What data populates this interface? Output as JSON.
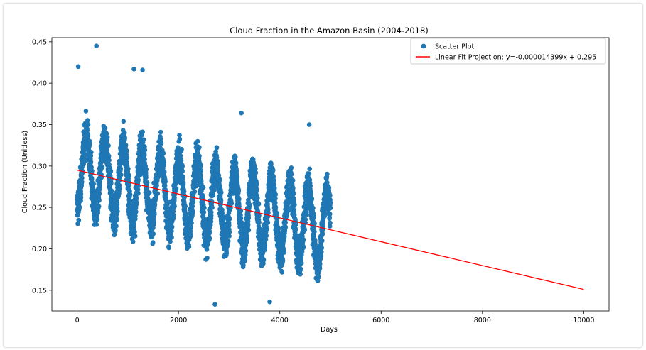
{
  "chart_data": {
    "type": "scatter",
    "title": "Cloud Fraction in the Amazon Basin (2004-2018)",
    "xlabel": "Days",
    "ylabel": "Cloud Fraction (Unitless)",
    "xlim": [
      -500,
      10500
    ],
    "ylim": [
      0.125,
      0.455
    ],
    "xticks": [
      0,
      2000,
      4000,
      6000,
      8000,
      10000
    ],
    "yticks": [
      0.15,
      0.2,
      0.25,
      0.3,
      0.35,
      0.4,
      0.45
    ],
    "ytick_labels": [
      "0.15",
      "0.20",
      "0.25",
      "0.30",
      "0.35",
      "0.40",
      "0.45"
    ],
    "legend_position": "top-right",
    "series": [
      {
        "name": "Scatter Plot",
        "kind": "scatter",
        "color": "#1f77b4",
        "x_range": [
          0,
          5000
        ],
        "seasonal_center": 0.262,
        "notable_points": [
          {
            "x": 380,
            "y": 0.445
          },
          {
            "x": 20,
            "y": 0.42
          },
          {
            "x": 1120,
            "y": 0.417
          },
          {
            "x": 1290,
            "y": 0.416
          },
          {
            "x": 2720,
            "y": 0.133
          },
          {
            "x": 3800,
            "y": 0.136
          },
          {
            "x": 3240,
            "y": 0.364
          },
          {
            "x": 4580,
            "y": 0.35
          }
        ]
      },
      {
        "name": "Linear Fit Projection: y=-0.000014399x + 0.295",
        "kind": "line",
        "color": "#ff0000",
        "slope": -1.4399e-05,
        "intercept": 0.295,
        "x": [
          0,
          10000
        ],
        "y": [
          0.295,
          0.151
        ]
      }
    ]
  }
}
